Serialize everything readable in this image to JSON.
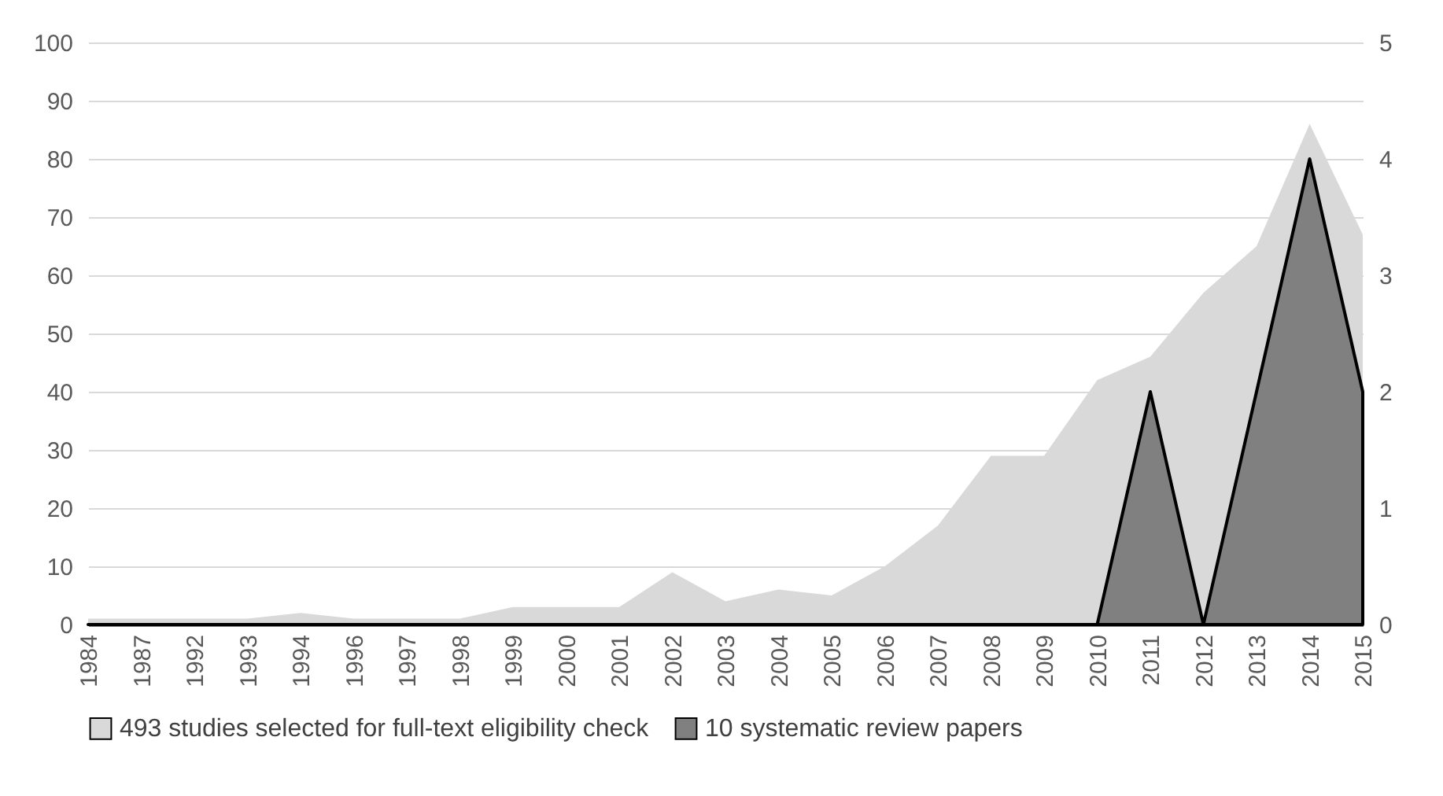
{
  "chart_data": {
    "type": "area",
    "categories": [
      "1984",
      "1987",
      "1992",
      "1993",
      "1994",
      "1996",
      "1997",
      "1998",
      "1999",
      "2000",
      "2001",
      "2002",
      "2003",
      "2004",
      "2005",
      "2006",
      "2007",
      "2008",
      "2009",
      "2010",
      "2011",
      "2012",
      "2013",
      "2014",
      "2015"
    ],
    "series": [
      {
        "name": "493 studies selected for full-text eligibility check",
        "color": "#d9d9d9",
        "values": [
          1,
          1,
          1,
          1,
          2,
          1,
          1,
          1,
          3,
          3,
          3,
          9,
          4,
          6,
          5,
          10,
          17,
          29,
          29,
          42,
          46,
          57,
          65,
          86,
          67
        ]
      },
      {
        "name": "10 systematic review papers",
        "color": "#808080",
        "axis": "y2",
        "values": [
          0,
          0,
          0,
          0,
          0,
          0,
          0,
          0,
          0,
          0,
          0,
          0,
          0,
          0,
          0,
          0,
          0,
          0,
          0,
          0,
          2,
          0,
          2,
          4,
          2
        ]
      }
    ],
    "ylim": [
      0,
      100
    ],
    "yticks": [
      0,
      10,
      20,
      30,
      40,
      50,
      60,
      70,
      80,
      90,
      100
    ],
    "y2lim": [
      0,
      5
    ],
    "y2ticks": [
      0,
      1,
      2,
      3,
      4,
      5
    ],
    "grid": "y",
    "legend": "bottom"
  }
}
